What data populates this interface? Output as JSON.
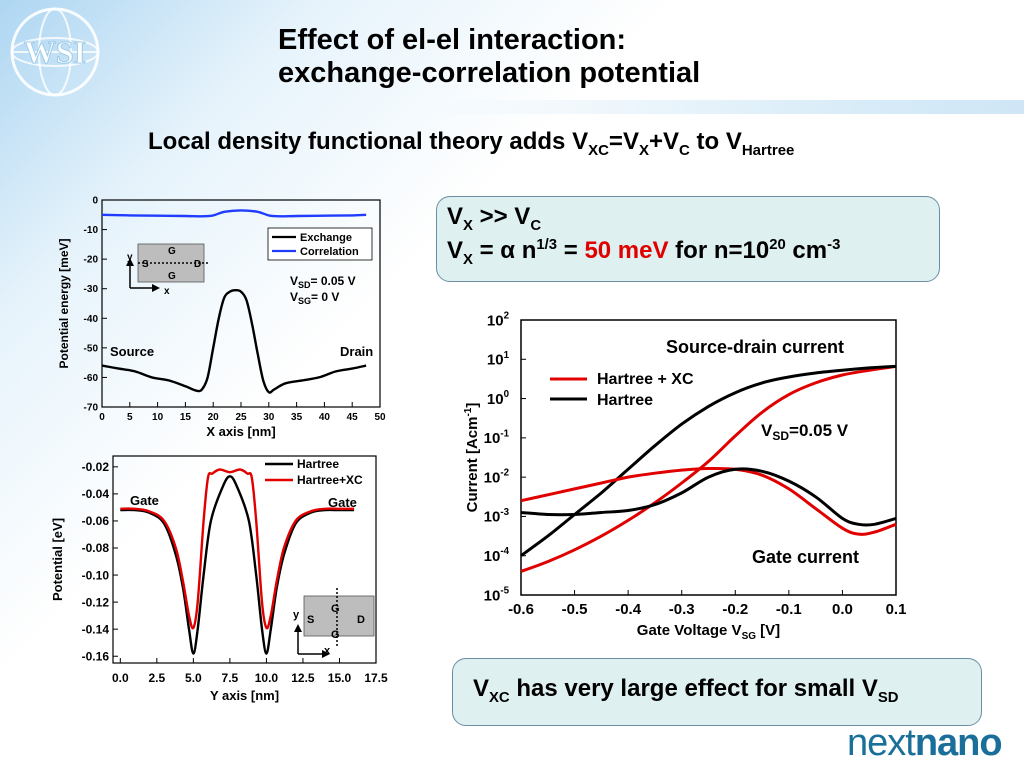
{
  "slide": {
    "title_line1": "Effect of el-el interaction:",
    "title_line2": "exchange-correlation potential",
    "subtitle": {
      "text": "Local density functional theory adds V",
      "s1": "XC",
      "t2": "=V",
      "s2": "X",
      "t3": "+V",
      "s3": "C",
      "t4": " to V",
      "s4": "Hartree"
    },
    "logo_text": "WSI",
    "brand": {
      "part1": "next",
      "part2": "nano"
    },
    "box1": {
      "line1": {
        "a": "V",
        "a_sub": "X",
        "b": " >> V",
        "b_sub": "C"
      },
      "line2": {
        "a": "V",
        "a_sub": "X",
        "b": " = ",
        "alpha": "α",
        "c": " n",
        "c_sup": "1/3",
        "d": " = ",
        "value": "50 meV",
        "e": " for n=10",
        "e_sup": "20",
        "f": " cm",
        "f_sup": "-3"
      }
    },
    "box2": {
      "a": "V",
      "a_sub": "XC",
      "b": " has very large effect for small V",
      "b_sub": "SD"
    },
    "colors": {
      "accent_red": "#e00000",
      "blue": "#1f3cff",
      "brand": "#1a6f9a",
      "box_fill": "#dff0f0"
    }
  },
  "chart_data": [
    {
      "type": "line",
      "xlabel": "X axis [nm]",
      "ylabel": "Potential energy [meV]",
      "xlim": [
        0,
        50
      ],
      "ylim": [
        -70,
        0
      ],
      "xticks": [
        "0",
        "5",
        "10",
        "15",
        "20",
        "25",
        "30",
        "35",
        "40",
        "45",
        "50"
      ],
      "yticks": [
        "0",
        "-10",
        "-20",
        "-30",
        "-40",
        "-50",
        "-60",
        "-70"
      ],
      "legend": [
        "Exchange",
        "Correlation"
      ],
      "annotations": {
        "source": "Source",
        "drain": "Drain",
        "vsd": {
          "a": "V",
          "sub": "SD",
          "b": "= 0.05 V"
        },
        "vsg": {
          "a": "V",
          "sub": "SG",
          "b": "= 0 V"
        },
        "inset": {
          "g_top": "G",
          "s": "S",
          "d": "D",
          "g_bot": "G",
          "y": "y",
          "x": "x"
        }
      },
      "series": [
        {
          "name": "Exchange",
          "color": "#000000",
          "x": [
            0,
            3,
            6,
            9,
            12,
            15,
            17,
            18,
            19,
            20,
            21,
            22,
            23,
            24,
            25,
            26,
            27,
            28,
            29,
            30,
            31,
            33,
            36,
            39,
            42,
            45,
            47.5
          ],
          "y": [
            -56,
            -57,
            -58,
            -60,
            -61,
            -63,
            -64.5,
            -64,
            -60,
            -50,
            -40,
            -33,
            -31,
            -30.5,
            -31,
            -34,
            -42,
            -52,
            -61,
            -65,
            -64,
            -62,
            -61,
            -60,
            -58,
            -57,
            -56
          ]
        },
        {
          "name": "Correlation",
          "color": "#1f3cff",
          "x": [
            0,
            5,
            10,
            15,
            18,
            20,
            22,
            25,
            28,
            30,
            32,
            35,
            40,
            45,
            47.5
          ],
          "y": [
            -5,
            -5.2,
            -5.3,
            -5.4,
            -5.5,
            -5.2,
            -4.0,
            -3.5,
            -4.0,
            -5.2,
            -5.5,
            -5.4,
            -5.3,
            -5.2,
            -5
          ]
        }
      ]
    },
    {
      "type": "line",
      "xlabel": "Y axis [nm]",
      "ylabel": "Potential [eV]",
      "xlim": [
        -0.5,
        17.5
      ],
      "ylim": [
        -0.165,
        -0.012
      ],
      "xticks": [
        "0.0",
        "2.5",
        "5.0",
        "7.5",
        "10.0",
        "12.5",
        "15.0",
        "17.5"
      ],
      "yticks": [
        "-0.02",
        "-0.04",
        "-0.06",
        "-0.08",
        "-0.10",
        "-0.12",
        "-0.14",
        "-0.16"
      ],
      "legend": [
        "Hartree",
        "Hartree+XC"
      ],
      "annotations": {
        "gate_left": "Gate",
        "gate_right": "Gate",
        "inset": {
          "g_top": "G",
          "s": "S",
          "d": "D",
          "g_bot": "G",
          "y": "y",
          "x": "x"
        }
      },
      "series": [
        {
          "name": "Hartree",
          "color": "#000000",
          "x": [
            0,
            1,
            2,
            3,
            3.8,
            4.3,
            4.7,
            5.0,
            5.3,
            5.7,
            6.2,
            7.0,
            7.5,
            8.0,
            8.8,
            9.3,
            9.7,
            10.0,
            10.3,
            10.7,
            11.2,
            12,
            13,
            14,
            15,
            16
          ],
          "y": [
            -0.052,
            -0.052,
            -0.054,
            -0.062,
            -0.085,
            -0.11,
            -0.14,
            -0.158,
            -0.14,
            -0.1,
            -0.06,
            -0.035,
            -0.027,
            -0.035,
            -0.06,
            -0.1,
            -0.14,
            -0.158,
            -0.14,
            -0.11,
            -0.085,
            -0.062,
            -0.054,
            -0.052,
            -0.052,
            -0.052
          ]
        },
        {
          "name": "Hartree+XC",
          "color": "#e00000",
          "x": [
            0,
            1,
            2,
            3,
            3.8,
            4.3,
            4.7,
            5.0,
            5.3,
            5.7,
            6.0,
            6.3,
            6.8,
            7.5,
            8.2,
            8.7,
            9.0,
            9.3,
            9.7,
            10.0,
            10.3,
            10.7,
            11.2,
            12,
            13,
            14,
            15,
            16
          ],
          "y": [
            -0.051,
            -0.051,
            -0.053,
            -0.06,
            -0.08,
            -0.105,
            -0.13,
            -0.139,
            -0.12,
            -0.06,
            -0.028,
            -0.025,
            -0.022,
            -0.024,
            -0.022,
            -0.025,
            -0.028,
            -0.06,
            -0.12,
            -0.139,
            -0.13,
            -0.105,
            -0.08,
            -0.06,
            -0.053,
            -0.051,
            -0.051,
            -0.051
          ]
        }
      ]
    },
    {
      "type": "line",
      "xlabel": {
        "a": "Gate Voltage V",
        "sub": "SG",
        "b": " [V]"
      },
      "ylabel": {
        "a": "Current [Acm",
        "sup": "-1",
        "b": "]"
      },
      "xlim": [
        -0.6,
        0.1
      ],
      "ylim": [
        -5,
        2
      ],
      "log_y": true,
      "xticks": [
        "-0.6",
        "-0.5",
        "-0.4",
        "-0.3",
        "-0.2",
        "-0.1",
        "0.0",
        "0.1"
      ],
      "yticks": [
        {
          "base": "10",
          "exp": "2"
        },
        {
          "base": "10",
          "exp": "1"
        },
        {
          "base": "10",
          "exp": "0"
        },
        {
          "base": "10",
          "exp": "-1"
        },
        {
          "base": "10",
          "exp": "-2"
        },
        {
          "base": "10",
          "exp": "-3"
        },
        {
          "base": "10",
          "exp": "-4"
        },
        {
          "base": "10",
          "exp": "-5"
        }
      ],
      "legend": [
        "Hartree + XC",
        "Hartree"
      ],
      "annotations": {
        "sd_label": "Source-drain current",
        "gate_label": "Gate current",
        "vsd": {
          "a": "V",
          "sub": "SD",
          "b": "=0.05 V"
        }
      },
      "series": [
        {
          "name": "Hartree + XC",
          "role": "source-drain",
          "color": "#e00000",
          "x": [
            -0.6,
            -0.55,
            -0.5,
            -0.45,
            -0.4,
            -0.35,
            -0.3,
            -0.25,
            -0.2,
            -0.15,
            -0.1,
            -0.05,
            0.0,
            0.05,
            0.1
          ],
          "y": [
            -4.4,
            -4.15,
            -3.85,
            -3.5,
            -3.1,
            -2.65,
            -2.15,
            -1.6,
            -0.95,
            -0.35,
            0.1,
            0.4,
            0.6,
            0.72,
            0.82
          ]
        },
        {
          "name": "Hartree",
          "role": "source-drain",
          "color": "#000000",
          "x": [
            -0.6,
            -0.55,
            -0.5,
            -0.45,
            -0.4,
            -0.35,
            -0.3,
            -0.25,
            -0.2,
            -0.15,
            -0.1,
            -0.05,
            0.0,
            0.05,
            0.1
          ],
          "y": [
            -4.0,
            -3.5,
            -2.95,
            -2.4,
            -1.8,
            -1.2,
            -0.65,
            -0.2,
            0.15,
            0.4,
            0.55,
            0.65,
            0.72,
            0.78,
            0.82
          ]
        },
        {
          "name": "Hartree + XC",
          "role": "gate",
          "color": "#e00000",
          "x": [
            -0.6,
            -0.55,
            -0.5,
            -0.45,
            -0.4,
            -0.35,
            -0.3,
            -0.25,
            -0.2,
            -0.15,
            -0.1,
            -0.05,
            0.0,
            0.03,
            0.06,
            0.1
          ],
          "y": [
            -2.6,
            -2.45,
            -2.3,
            -2.15,
            -2.0,
            -1.9,
            -1.82,
            -1.78,
            -1.8,
            -1.95,
            -2.3,
            -2.8,
            -3.3,
            -3.45,
            -3.4,
            -3.2
          ]
        },
        {
          "name": "Hartree",
          "role": "gate",
          "color": "#000000",
          "x": [
            -0.6,
            -0.55,
            -0.5,
            -0.45,
            -0.4,
            -0.35,
            -0.3,
            -0.25,
            -0.2,
            -0.15,
            -0.1,
            -0.05,
            0.0,
            0.03,
            0.06,
            0.1
          ],
          "y": [
            -2.9,
            -2.95,
            -2.95,
            -2.9,
            -2.85,
            -2.7,
            -2.4,
            -2.0,
            -1.8,
            -1.85,
            -2.1,
            -2.5,
            -3.05,
            -3.2,
            -3.2,
            -3.05
          ]
        }
      ]
    }
  ]
}
